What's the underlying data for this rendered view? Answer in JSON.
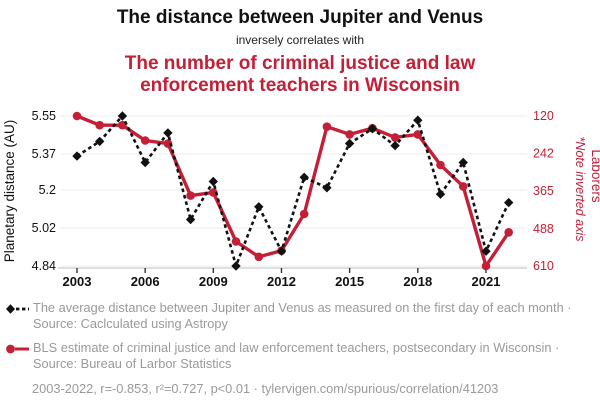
{
  "header": {
    "title_black": "The distance between Jupiter and Venus",
    "connector": "inversely correlates with",
    "title_red": "The number of criminal justice and law enforcement teachers in Wisconsin"
  },
  "colors": {
    "series_black": "#111111",
    "series_red": "#c32038",
    "legend_gray": "#9a9a9a",
    "gridline": "#ececec",
    "axis_line": "#c9c9c9"
  },
  "chart_data": {
    "type": "line",
    "x": [
      2003,
      2004,
      2005,
      2006,
      2007,
      2008,
      2009,
      2010,
      2011,
      2012,
      2013,
      2014,
      2015,
      2016,
      2017,
      2018,
      2019,
      2020,
      2021,
      2022
    ],
    "series": [
      {
        "name": "Average distance between Jupiter and Venus (AU)",
        "axis": "left",
        "color": "#111111",
        "style": "dashed",
        "marker": "diamond",
        "values": [
          5.36,
          5.43,
          5.55,
          5.33,
          5.47,
          5.06,
          5.24,
          4.84,
          5.12,
          4.91,
          5.26,
          5.21,
          5.42,
          5.49,
          5.41,
          5.53,
          5.18,
          5.33,
          4.91,
          5.14
        ]
      },
      {
        "name": "Criminal justice and law enforcement teachers in Wisconsin",
        "axis": "right",
        "color": "#c32038",
        "style": "solid",
        "marker": "circle",
        "values": [
          120,
          150,
          150,
          200,
          210,
          380,
          370,
          530,
          580,
          560,
          440,
          155,
          180,
          160,
          190,
          180,
          280,
          350,
          610,
          500
        ]
      }
    ],
    "left_axis": {
      "label": "Planetary distance (AU)",
      "ticks": [
        5.55,
        5.37,
        5.2,
        5.02,
        4.84
      ],
      "range": [
        4.84,
        5.55
      ],
      "inverted": false
    },
    "right_axis": {
      "label": "Laborers",
      "note": "*Note inverted axis",
      "ticks": [
        120,
        242,
        365,
        488,
        610
      ],
      "range": [
        120,
        610
      ],
      "inverted": true
    },
    "x_axis": {
      "ticks": [
        2003,
        2006,
        2009,
        2012,
        2015,
        2018,
        2021
      ],
      "range": [
        2003,
        2022
      ]
    },
    "grid": "horizontal"
  },
  "legend": {
    "entries": [
      {
        "marker": "black-diamond-dashed",
        "text": "The average distance between Jupiter and Venus as measured on the first day of each month · Source: Caclculated using Astropy"
      },
      {
        "marker": "red-circle-solid",
        "text": "BLS estimate of criminal justice and law enforcement teachers, postsecondary in Wisconsin · Source: Bureau of Larbor Statistics"
      }
    ],
    "footer": "2003-2022, r=-0.853, r²=0.727, p<0.01 · tylervigen.com/spurious/correlation/41203"
  }
}
